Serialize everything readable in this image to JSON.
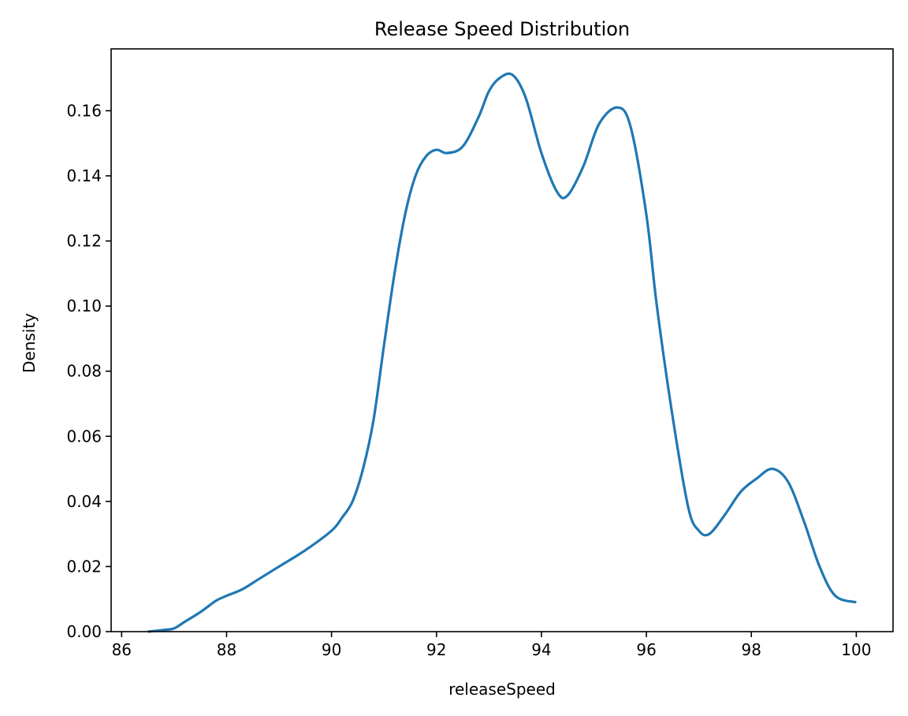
{
  "chart_data": {
    "type": "line",
    "title": "Release Speed Distribution",
    "xlabel": "releaseSpeed",
    "ylabel": "Density",
    "xlim": [
      85.8,
      100.7
    ],
    "ylim": [
      0,
      0.179
    ],
    "x_ticks": [
      86,
      88,
      90,
      92,
      94,
      96,
      98,
      100
    ],
    "y_ticks": [
      0.0,
      0.02,
      0.04,
      0.06,
      0.08,
      0.1,
      0.12,
      0.14,
      0.16
    ],
    "x_tick_labels": [
      "86",
      "88",
      "90",
      "92",
      "94",
      "96",
      "98",
      "100"
    ],
    "y_tick_labels": [
      "0.00",
      "0.02",
      "0.04",
      "0.06",
      "0.08",
      "0.10",
      "0.12",
      "0.14",
      "0.16"
    ],
    "grid": false,
    "legend": "none",
    "series": [
      {
        "color": "#1f77b4",
        "x": [
          86.5,
          86.8,
          87.0,
          87.2,
          87.5,
          87.8,
          88.0,
          88.3,
          88.6,
          89.0,
          89.5,
          90.0,
          90.2,
          90.4,
          90.6,
          90.8,
          91.0,
          91.2,
          91.4,
          91.6,
          91.8,
          92.0,
          92.2,
          92.5,
          92.8,
          93.0,
          93.2,
          93.45,
          93.7,
          94.0,
          94.3,
          94.5,
          94.8,
          95.1,
          95.45,
          95.7,
          96.0,
          96.2,
          96.5,
          96.8,
          97.0,
          97.2,
          97.5,
          97.8,
          98.1,
          98.4,
          98.7,
          99.0,
          99.3,
          99.6,
          100.0
        ],
        "y": [
          0.0,
          0.0005,
          0.001,
          0.003,
          0.006,
          0.0095,
          0.011,
          0.013,
          0.016,
          0.02,
          0.025,
          0.031,
          0.035,
          0.04,
          0.05,
          0.065,
          0.088,
          0.11,
          0.128,
          0.14,
          0.146,
          0.148,
          0.147,
          0.149,
          0.158,
          0.166,
          0.17,
          0.171,
          0.164,
          0.147,
          0.135,
          0.134,
          0.143,
          0.156,
          0.161,
          0.155,
          0.128,
          0.1,
          0.066,
          0.038,
          0.031,
          0.03,
          0.036,
          0.043,
          0.047,
          0.05,
          0.046,
          0.034,
          0.02,
          0.011,
          0.009
        ]
      }
    ]
  }
}
